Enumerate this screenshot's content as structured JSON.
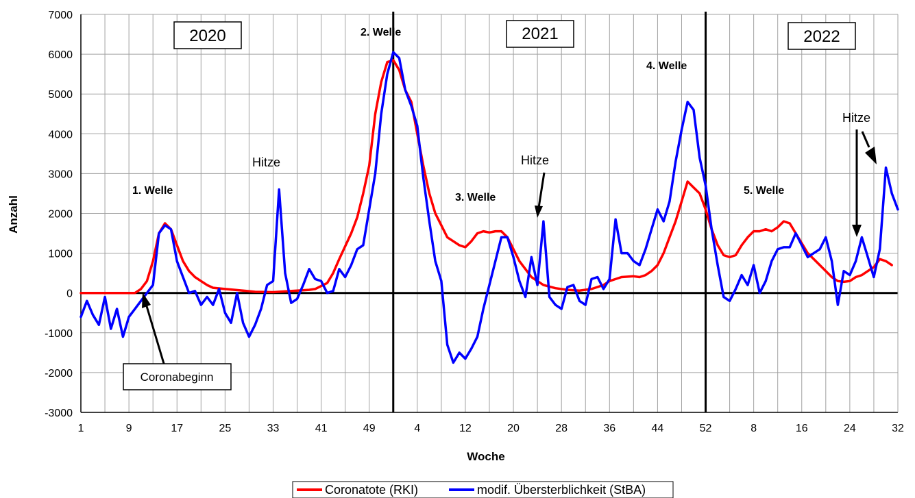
{
  "chart_data": {
    "type": "line",
    "xlabel": "Woche",
    "ylabel": "Anzahl",
    "ylim": [
      -3000,
      7000
    ],
    "yticks": [
      -3000,
      -2000,
      -1000,
      0,
      1000,
      2000,
      3000,
      4000,
      5000,
      6000,
      7000
    ],
    "xlim": [
      1,
      136
    ],
    "xticks": [
      {
        "x": 1,
        "label": "1"
      },
      {
        "x": 9,
        "label": "9"
      },
      {
        "x": 17,
        "label": "17"
      },
      {
        "x": 25,
        "label": "25"
      },
      {
        "x": 33,
        "label": "33"
      },
      {
        "x": 41,
        "label": "41"
      },
      {
        "x": 49,
        "label": "49"
      },
      {
        "x": 57,
        "label": "4"
      },
      {
        "x": 65,
        "label": "12"
      },
      {
        "x": 73,
        "label": "20"
      },
      {
        "x": 81,
        "label": "28"
      },
      {
        "x": 89,
        "label": "36"
      },
      {
        "x": 97,
        "label": "44"
      },
      {
        "x": 105,
        "label": "52"
      },
      {
        "x": 113,
        "label": "8"
      },
      {
        "x": 121,
        "label": "16"
      },
      {
        "x": 129,
        "label": "24"
      },
      {
        "x": 137,
        "label": "32"
      }
    ],
    "grid": true,
    "legend_position": "bottom",
    "series": [
      {
        "name": "Coronatote (RKI)",
        "color": "#ff0000",
        "points": [
          [
            1,
            0
          ],
          [
            9,
            0
          ],
          [
            10,
            0
          ],
          [
            11,
            100
          ],
          [
            12,
            300
          ],
          [
            13,
            800
          ],
          [
            14,
            1500
          ],
          [
            15,
            1750
          ],
          [
            16,
            1600
          ],
          [
            17,
            1200
          ],
          [
            18,
            800
          ],
          [
            19,
            550
          ],
          [
            20,
            400
          ],
          [
            21,
            300
          ],
          [
            22,
            200
          ],
          [
            23,
            130
          ],
          [
            25,
            100
          ],
          [
            28,
            60
          ],
          [
            30,
            30
          ],
          [
            33,
            20
          ],
          [
            35,
            40
          ],
          [
            37,
            60
          ],
          [
            39,
            80
          ],
          [
            40,
            100
          ],
          [
            42,
            250
          ],
          [
            43,
            500
          ],
          [
            44,
            850
          ],
          [
            46,
            1500
          ],
          [
            47,
            1900
          ],
          [
            48,
            2500
          ],
          [
            49,
            3200
          ],
          [
            50,
            4500
          ],
          [
            51,
            5300
          ],
          [
            52,
            5800
          ],
          [
            53,
            5850
          ],
          [
            54,
            5600
          ],
          [
            55,
            5100
          ],
          [
            56,
            4800
          ],
          [
            57,
            4000
          ],
          [
            58,
            3200
          ],
          [
            59,
            2500
          ],
          [
            60,
            2000
          ],
          [
            61,
            1700
          ],
          [
            62,
            1400
          ],
          [
            63,
            1300
          ],
          [
            64,
            1200
          ],
          [
            65,
            1150
          ],
          [
            66,
            1300
          ],
          [
            67,
            1500
          ],
          [
            68,
            1550
          ],
          [
            69,
            1520
          ],
          [
            70,
            1550
          ],
          [
            71,
            1550
          ],
          [
            72,
            1400
          ],
          [
            73,
            1100
          ],
          [
            74,
            800
          ],
          [
            75,
            600
          ],
          [
            76,
            400
          ],
          [
            77,
            300
          ],
          [
            78,
            200
          ],
          [
            80,
            120
          ],
          [
            82,
            80
          ],
          [
            84,
            60
          ],
          [
            86,
            100
          ],
          [
            88,
            200
          ],
          [
            89,
            300
          ],
          [
            90,
            350
          ],
          [
            91,
            400
          ],
          [
            93,
            420
          ],
          [
            94,
            400
          ],
          [
            95,
            450
          ],
          [
            96,
            550
          ],
          [
            97,
            700
          ],
          [
            98,
            1000
          ],
          [
            99,
            1400
          ],
          [
            100,
            1800
          ],
          [
            101,
            2300
          ],
          [
            102,
            2800
          ],
          [
            103,
            2650
          ],
          [
            104,
            2500
          ],
          [
            105,
            2100
          ],
          [
            106,
            1600
          ],
          [
            107,
            1200
          ],
          [
            108,
            950
          ],
          [
            109,
            900
          ],
          [
            110,
            950
          ],
          [
            111,
            1200
          ],
          [
            112,
            1400
          ],
          [
            113,
            1550
          ],
          [
            114,
            1550
          ],
          [
            115,
            1600
          ],
          [
            116,
            1550
          ],
          [
            117,
            1650
          ],
          [
            118,
            1800
          ],
          [
            119,
            1750
          ],
          [
            120,
            1500
          ],
          [
            121,
            1250
          ],
          [
            122,
            1000
          ],
          [
            123,
            850
          ],
          [
            124,
            700
          ],
          [
            125,
            550
          ],
          [
            126,
            400
          ],
          [
            127,
            300
          ],
          [
            128,
            280
          ],
          [
            129,
            300
          ],
          [
            130,
            400
          ],
          [
            131,
            450
          ],
          [
            132,
            550
          ],
          [
            133,
            650
          ],
          [
            134,
            850
          ],
          [
            135,
            800
          ],
          [
            136,
            700
          ]
        ]
      },
      {
        "name": "modif. Übersterblichkeit (StBA)",
        "color": "#0000ff",
        "points": [
          [
            1,
            -600
          ],
          [
            2,
            -200
          ],
          [
            3,
            -550
          ],
          [
            4,
            -800
          ],
          [
            5,
            -100
          ],
          [
            6,
            -900
          ],
          [
            7,
            -400
          ],
          [
            8,
            -1100
          ],
          [
            9,
            -600
          ],
          [
            10,
            -400
          ],
          [
            11,
            -200
          ],
          [
            12,
            0
          ],
          [
            13,
            200
          ],
          [
            14,
            1500
          ],
          [
            15,
            1700
          ],
          [
            16,
            1600
          ],
          [
            17,
            800
          ],
          [
            18,
            400
          ],
          [
            19,
            0
          ],
          [
            20,
            50
          ],
          [
            21,
            -300
          ],
          [
            22,
            -100
          ],
          [
            23,
            -300
          ],
          [
            24,
            100
          ],
          [
            25,
            -500
          ],
          [
            26,
            -750
          ],
          [
            27,
            0
          ],
          [
            28,
            -750
          ],
          [
            29,
            -1100
          ],
          [
            30,
            -800
          ],
          [
            31,
            -400
          ],
          [
            32,
            200
          ],
          [
            33,
            300
          ],
          [
            34,
            2600
          ],
          [
            35,
            500
          ],
          [
            36,
            -250
          ],
          [
            37,
            -150
          ],
          [
            38,
            200
          ],
          [
            39,
            600
          ],
          [
            40,
            350
          ],
          [
            41,
            300
          ],
          [
            42,
            0
          ],
          [
            43,
            50
          ],
          [
            44,
            600
          ],
          [
            45,
            400
          ],
          [
            46,
            700
          ],
          [
            47,
            1100
          ],
          [
            48,
            1200
          ],
          [
            49,
            2100
          ],
          [
            50,
            3000
          ],
          [
            51,
            4500
          ],
          [
            52,
            5500
          ],
          [
            53,
            6050
          ],
          [
            54,
            5900
          ],
          [
            55,
            5100
          ],
          [
            56,
            4700
          ],
          [
            57,
            4200
          ],
          [
            58,
            2900
          ],
          [
            59,
            1800
          ],
          [
            60,
            800
          ],
          [
            61,
            300
          ],
          [
            62,
            -1300
          ],
          [
            63,
            -1750
          ],
          [
            64,
            -1500
          ],
          [
            65,
            -1650
          ],
          [
            66,
            -1400
          ],
          [
            67,
            -1100
          ],
          [
            68,
            -400
          ],
          [
            69,
            200
          ],
          [
            70,
            800
          ],
          [
            71,
            1400
          ],
          [
            72,
            1400
          ],
          [
            73,
            900
          ],
          [
            74,
            300
          ],
          [
            75,
            -100
          ],
          [
            76,
            900
          ],
          [
            77,
            200
          ],
          [
            78,
            1800
          ],
          [
            79,
            -100
          ],
          [
            80,
            -300
          ],
          [
            81,
            -400
          ],
          [
            82,
            150
          ],
          [
            83,
            200
          ],
          [
            84,
            -200
          ],
          [
            85,
            -300
          ],
          [
            86,
            350
          ],
          [
            87,
            400
          ],
          [
            88,
            100
          ],
          [
            89,
            350
          ],
          [
            90,
            1850
          ],
          [
            91,
            1000
          ],
          [
            92,
            1000
          ],
          [
            93,
            800
          ],
          [
            94,
            700
          ],
          [
            95,
            1100
          ],
          [
            96,
            1600
          ],
          [
            97,
            2100
          ],
          [
            98,
            1800
          ],
          [
            99,
            2300
          ],
          [
            100,
            3300
          ],
          [
            101,
            4100
          ],
          [
            102,
            4800
          ],
          [
            103,
            4600
          ],
          [
            104,
            3400
          ],
          [
            105,
            2700
          ],
          [
            106,
            1600
          ],
          [
            107,
            700
          ],
          [
            108,
            -100
          ],
          [
            109,
            -200
          ],
          [
            110,
            100
          ],
          [
            111,
            450
          ],
          [
            112,
            200
          ],
          [
            113,
            700
          ],
          [
            114,
            0
          ],
          [
            115,
            300
          ],
          [
            116,
            800
          ],
          [
            117,
            1100
          ],
          [
            118,
            1150
          ],
          [
            119,
            1150
          ],
          [
            120,
            1500
          ],
          [
            121,
            1200
          ],
          [
            122,
            900
          ],
          [
            123,
            1000
          ],
          [
            124,
            1100
          ],
          [
            125,
            1400
          ],
          [
            126,
            800
          ],
          [
            127,
            -300
          ],
          [
            128,
            550
          ],
          [
            129,
            450
          ],
          [
            130,
            800
          ],
          [
            131,
            1400
          ],
          [
            132,
            900
          ],
          [
            133,
            400
          ],
          [
            134,
            1100
          ],
          [
            135,
            3150
          ],
          [
            136,
            2500
          ],
          [
            137,
            2100
          ]
        ]
      }
    ],
    "vertical_lines": [
      53,
      105
    ],
    "year_labels": [
      "2020",
      "2021",
      "2022"
    ],
    "annotations": {
      "welle1": "1.  Welle",
      "welle2": "2.  Welle",
      "welle3": "3.  Welle",
      "welle4": "4.  Welle",
      "welle5": "5.  Welle",
      "hitze1": "Hitze",
      "hitze2": "Hitze",
      "hitze3": "Hitze",
      "coronabeginn": "Coronabeginn"
    }
  }
}
